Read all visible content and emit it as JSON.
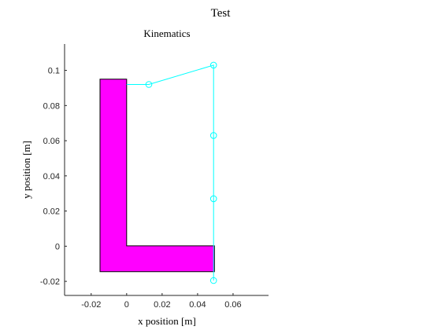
{
  "figure": {
    "suptitle": "Test"
  },
  "chart_data": {
    "type": "line",
    "title": "Kinematics",
    "xlabel": "x position [m]",
    "ylabel": "y position [m]",
    "xlim": [
      -0.035,
      0.08
    ],
    "ylim": [
      -0.028,
      0.115
    ],
    "grid": false,
    "xticks": [
      -0.02,
      0,
      0.02,
      0.04,
      0.06
    ],
    "xtick_labels": [
      "-0.02",
      "0",
      "0.02",
      "0.04",
      "0.06"
    ],
    "yticks": [
      -0.02,
      0,
      0.02,
      0.04,
      0.06,
      0.08,
      0.1
    ],
    "ytick_labels": [
      "-0.02",
      "0",
      "0.02",
      "0.04",
      "0.06",
      "0.08",
      "0.1"
    ],
    "colors": {
      "body_fill": "#ff00ff",
      "body_edge": "#000000",
      "linkage": "#00ffff",
      "axis": "#262626"
    },
    "body_polygon": [
      [
        -0.015,
        -0.0145
      ],
      [
        0.0495,
        -0.0145
      ],
      [
        0.0495,
        0.0002
      ],
      [
        0.0,
        0.0002
      ],
      [
        0.0,
        0.095
      ],
      [
        -0.015,
        0.095
      ]
    ],
    "series": [
      {
        "x": [
          0.0,
          0.0125,
          0.049,
          0.049,
          0.049,
          0.049,
          0.049,
          0.049
        ],
        "y": [
          0.092,
          0.092,
          0.103,
          0.063,
          0.027,
          0.0,
          -0.0145,
          -0.0195
        ],
        "markers": [
          false,
          true,
          true,
          true,
          true,
          false,
          false,
          true
        ]
      }
    ]
  }
}
